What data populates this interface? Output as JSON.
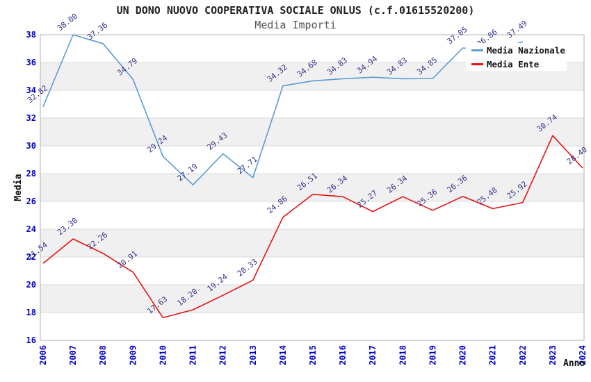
{
  "title": "UN DONO NUOVO COOPERATIVA SOCIALE ONLUS (c.f.01615520200)",
  "subtitle": "Media Importi",
  "axes": {
    "x_label": "Anno",
    "y_label": "Media",
    "y_ticks": [
      16,
      18,
      20,
      22,
      24,
      26,
      28,
      30,
      32,
      34,
      36,
      38
    ],
    "tick_label_color": "#0000cc",
    "band_fill_color": "#f0f0f0",
    "gridline_color": "#d9d9d9",
    "border_color": "#b0b0b0"
  },
  "legend": {
    "position": "top-right",
    "items": [
      {
        "label": "Media Nazionale",
        "color": "#5B9BD5"
      },
      {
        "label": "Media Ente",
        "color": "#E81212"
      }
    ]
  },
  "data_label_color": "#333388",
  "chart_data": {
    "type": "line",
    "x": [
      "2006",
      "2007",
      "2008",
      "2009",
      "2010",
      "2011",
      "2012",
      "2013",
      "2014",
      "2015",
      "2016",
      "2017",
      "2018",
      "2019",
      "2020",
      "2021",
      "2022",
      "2023",
      "2024"
    ],
    "ylim": [
      16,
      38
    ],
    "grid": "horizontal alternating shaded bands every 2 units",
    "legend_position": "top-right",
    "title": "UN DONO NUOVO COOPERATIVA SOCIALE ONLUS (c.f.01615520200)",
    "subtitle": "Media Importi",
    "xlabel": "Anno",
    "ylabel": "Media",
    "series": [
      {
        "name": "Media Nazionale",
        "color": "#5B9BD5",
        "values": [
          32.82,
          38.0,
          37.36,
          34.79,
          29.24,
          27.19,
          29.43,
          27.71,
          34.32,
          34.68,
          34.83,
          34.94,
          34.83,
          34.85,
          37.05,
          36.86,
          37.49,
          null,
          null
        ],
        "labels": [
          "32.82",
          "38.00",
          "37.36",
          "34.79",
          "29.24",
          "27.19",
          "29.43",
          "27.71",
          "34.32",
          "34.68",
          "34.83",
          "34.94",
          "34.83",
          "34.85",
          "37.05",
          "36.86",
          "37.49",
          "",
          ""
        ],
        "label_occluded_by_legend": [
          15
        ]
      },
      {
        "name": "Media Ente",
        "color": "#E81212",
        "values": [
          21.54,
          23.3,
          22.26,
          20.91,
          17.63,
          18.2,
          19.24,
          20.33,
          24.86,
          26.51,
          26.34,
          25.27,
          26.34,
          25.36,
          26.36,
          25.48,
          25.92,
          30.74,
          28.4
        ],
        "labels": [
          "21.54",
          "23.30",
          "22.26",
          "20.91",
          "17.63",
          "18.20",
          "19.24",
          "20.33",
          "24.86",
          "26.51",
          "26.34",
          "25.27",
          "26.34",
          "25.36",
          "26.36",
          "25.48",
          "25.92",
          "30.74",
          "28.40"
        ]
      }
    ]
  }
}
